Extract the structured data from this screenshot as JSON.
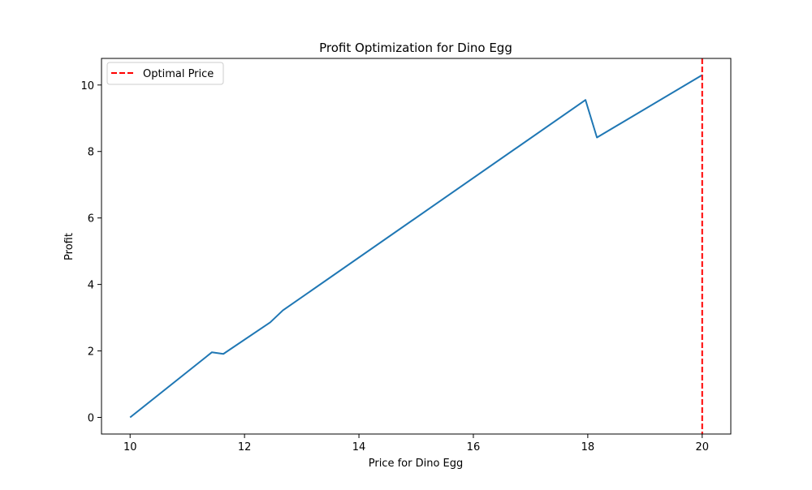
{
  "chart_data": {
    "type": "line",
    "title": "Profit Optimization for Dino Egg",
    "xlabel": "Price for Dino Egg",
    "ylabel": "Profit",
    "xlim": [
      9.5,
      20.5
    ],
    "ylim": [
      -0.5,
      10.8
    ],
    "xticks": [
      10,
      12,
      14,
      16,
      18,
      20
    ],
    "yticks": [
      0,
      2,
      4,
      6,
      8,
      10
    ],
    "grid": false,
    "legend_placement": "upper-left",
    "series": [
      {
        "color": "#1f77b4",
        "x": [
          10.0,
          11.43,
          11.63,
          12.45,
          12.67,
          17.96,
          18.16,
          20.0
        ],
        "y": [
          0.0,
          1.96,
          1.91,
          2.86,
          3.22,
          9.55,
          8.42,
          10.3
        ]
      }
    ],
    "vlines": [
      {
        "name": "Optimal Price",
        "x": 20.0,
        "color": "#ff0000",
        "linestyle": "dashed"
      }
    ]
  }
}
